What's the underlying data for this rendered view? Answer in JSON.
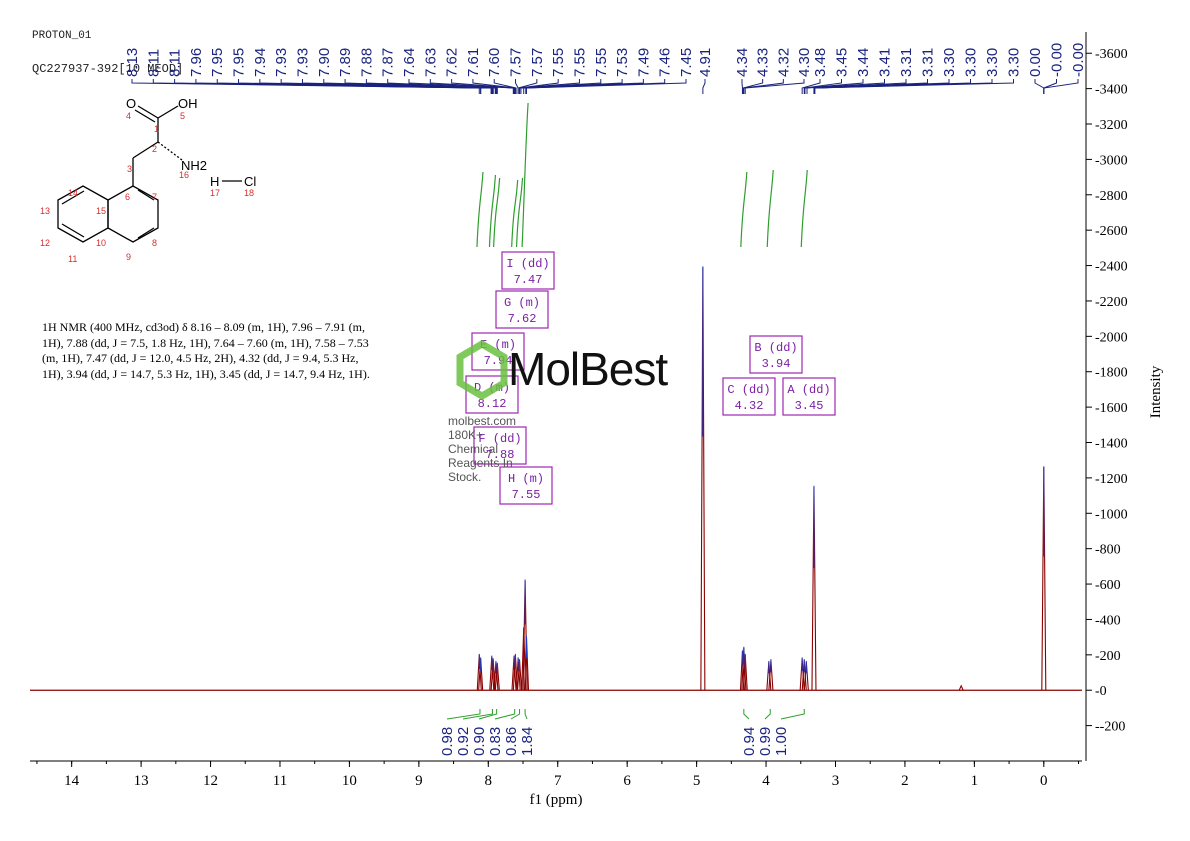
{
  "header": {
    "experiment": "PROTON_01",
    "sample": "QC227937-392[10 MEOD]"
  },
  "nmr_description": "1H NMR (400 MHz, cd3od) δ 8.16 – 8.09 (m, 1H), 7.96 – 7.91 (m, 1H), 7.88 (dd, J = 7.5, 1.8 Hz, 1H), 7.64 – 7.60 (m, 1H), 7.58 – 7.53 (m, 1H), 7.47 (dd, J = 12.0, 4.5 Hz, 2H), 4.32 (dd, J = 9.4, 5.3 Hz, 1H), 3.94 (dd, J = 14.7, 5.3 Hz, 1H), 3.45 (dd, J = 14.7, 9.4 Hz, 1H).",
  "structure": {
    "atoms": [
      "O",
      "OH",
      "NH2",
      "H",
      "Cl"
    ],
    "numbers": [
      "1",
      "2",
      "3",
      "4",
      "5",
      "6",
      "7",
      "8",
      "9",
      "10",
      "11",
      "12",
      "13",
      "14",
      "15",
      "16",
      "17",
      "18"
    ]
  },
  "watermark": {
    "brand": "MolBest",
    "tagline": "molbest.com 180K+ Chemical Reagents In Stock."
  },
  "colors": {
    "spectrum": "#8b0000",
    "peak_labels": "#1a237e",
    "integrals": "#2e9e2e",
    "multiplet_boxes": "#9c27b0",
    "watermark_green": "#6abf3f"
  },
  "chart_data": {
    "type": "line",
    "xlabel": "f1 (ppm)",
    "ylabel": "Intensity",
    "xlim": [
      14.6,
      -0.55
    ],
    "ylim": [
      -400,
      3720
    ],
    "x_ticks": [
      14,
      13,
      12,
      11,
      10,
      9,
      8,
      7,
      6,
      5,
      4,
      3,
      2,
      1,
      0
    ],
    "y_ticks": [
      -200,
      0,
      200,
      400,
      600,
      800,
      1000,
      1200,
      1400,
      1600,
      1800,
      2000,
      2200,
      2400,
      2600,
      2800,
      3000,
      3200,
      3400,
      3600
    ],
    "peaks": [
      {
        "ppm": 8.13,
        "height": 200
      },
      {
        "ppm": 8.11,
        "height": 180
      },
      {
        "ppm": 7.95,
        "height": 190
      },
      {
        "ppm": 7.93,
        "height": 175
      },
      {
        "ppm": 7.89,
        "height": 160
      },
      {
        "ppm": 7.87,
        "height": 150
      },
      {
        "ppm": 7.63,
        "height": 190
      },
      {
        "ppm": 7.61,
        "height": 200
      },
      {
        "ppm": 7.57,
        "height": 180
      },
      {
        "ppm": 7.55,
        "height": 170
      },
      {
        "ppm": 7.49,
        "height": 350
      },
      {
        "ppm": 7.47,
        "height": 620
      },
      {
        "ppm": 7.45,
        "height": 300
      },
      {
        "ppm": 4.91,
        "height": 2390
      },
      {
        "ppm": 4.34,
        "height": 220
      },
      {
        "ppm": 4.32,
        "height": 240
      },
      {
        "ppm": 4.3,
        "height": 200
      },
      {
        "ppm": 3.96,
        "height": 160
      },
      {
        "ppm": 3.93,
        "height": 170
      },
      {
        "ppm": 3.48,
        "height": 180
      },
      {
        "ppm": 3.45,
        "height": 170
      },
      {
        "ppm": 3.42,
        "height": 160
      },
      {
        "ppm": 3.31,
        "height": 1150
      },
      {
        "ppm": 1.19,
        "height": 25
      },
      {
        "ppm": 0.0,
        "height": 1260
      }
    ],
    "peak_labels": [
      "8.13",
      "8.11",
      "8.11",
      "7.96",
      "7.95",
      "7.95",
      "7.94",
      "7.93",
      "7.93",
      "7.90",
      "7.89",
      "7.88",
      "7.87",
      "7.64",
      "7.63",
      "7.62",
      "7.61",
      "7.60",
      "7.57",
      "7.57",
      "7.55",
      "7.55",
      "7.55",
      "7.53",
      "7.49",
      "7.46",
      "7.45",
      "4.91",
      "4.34",
      "4.33",
      "4.32",
      "4.30",
      "3.48",
      "3.45",
      "3.44",
      "3.41",
      "3.31",
      "3.31",
      "3.30",
      "3.30",
      "3.30",
      "3.30",
      "0.00",
      "-0.00",
      "-0.00"
    ],
    "integrals": [
      {
        "ppm": 8.12,
        "value": "0.98"
      },
      {
        "ppm": 7.94,
        "value": "0.92"
      },
      {
        "ppm": 7.88,
        "value": "0.90"
      },
      {
        "ppm": 7.62,
        "value": "0.83"
      },
      {
        "ppm": 7.55,
        "value": "0.86"
      },
      {
        "ppm": 7.47,
        "value": "1.84"
      },
      {
        "ppm": 4.32,
        "value": "0.94"
      },
      {
        "ppm": 3.94,
        "value": "0.99"
      },
      {
        "ppm": 3.45,
        "value": "1.00"
      }
    ],
    "multiplets": [
      {
        "label": "I (dd)",
        "shift": "7.47"
      },
      {
        "label": "G (m)",
        "shift": "7.62"
      },
      {
        "label": "E (m)",
        "shift": "7.94"
      },
      {
        "label": "D (m)",
        "shift": "8.12"
      },
      {
        "label": "F (dd)",
        "shift": "7.88"
      },
      {
        "label": "H (m)",
        "shift": "7.55"
      },
      {
        "label": "B (dd)",
        "shift": "3.94"
      },
      {
        "label": "C (dd)",
        "shift": "4.32"
      },
      {
        "label": "A (dd)",
        "shift": "3.45"
      }
    ]
  }
}
